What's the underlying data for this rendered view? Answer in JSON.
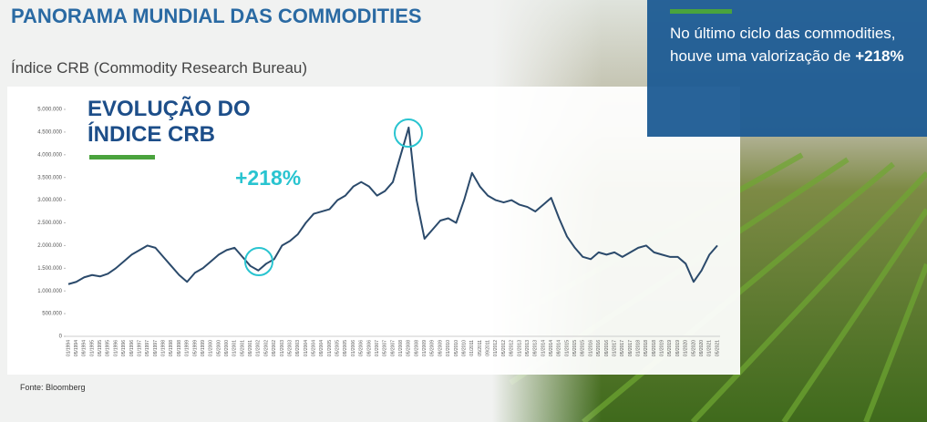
{
  "header": {
    "title": "PANORAMA MUNDIAL DAS COMMODITIES",
    "subtitle": "Índice CRB (Commodity Research Bureau)"
  },
  "callout": {
    "text": "No último ciclo das commodities, houve uma valorização de",
    "highlight": "+218%"
  },
  "source": "Fonte: Bloomberg",
  "chart_data": {
    "type": "line",
    "title": "EVOLUÇÃO DO ÍNDICE CRB",
    "annotation": "+218%",
    "categories": [
      "01/1994",
      "05/1994",
      "09/1994",
      "01/1995",
      "05/1995",
      "09/1995",
      "01/1996",
      "05/1996",
      "09/1996",
      "01/1997",
      "05/1997",
      "09/1997",
      "01/1998",
      "05/1998",
      "09/1998",
      "01/1999",
      "05/1999",
      "09/1999",
      "01/2000",
      "05/2000",
      "09/2000",
      "01/2001",
      "05/2001",
      "09/2001",
      "01/2002",
      "05/2002",
      "09/2002",
      "01/2003",
      "05/2003",
      "09/2003",
      "01/2004",
      "05/2004",
      "09/2004",
      "01/2005",
      "05/2005",
      "09/2005",
      "01/2006",
      "05/2006",
      "09/2006",
      "01/2007",
      "05/2007",
      "09/2007",
      "01/2008",
      "05/2008",
      "09/2008",
      "01/2009",
      "05/2009",
      "09/2009",
      "01/2010",
      "05/2010",
      "09/2010",
      "01/2011",
      "05/2011",
      "09/2011",
      "01/2012",
      "05/2012",
      "09/2012",
      "01/2013",
      "05/2013",
      "09/2013",
      "01/2014",
      "05/2014",
      "09/2014",
      "01/2015",
      "05/2015",
      "09/2015",
      "01/2016",
      "05/2016",
      "09/2016",
      "01/2017",
      "05/2017",
      "09/2017",
      "01/2018",
      "05/2018",
      "09/2018",
      "01/2019",
      "05/2019",
      "09/2019",
      "01/2020",
      "05/2020",
      "09/2020",
      "01/2021",
      "05/2021"
    ],
    "series": [
      {
        "name": "CRB",
        "color": "#2b4a6b",
        "values": [
          1150000,
          1200000,
          1300000,
          1350000,
          1320000,
          1380000,
          1500000,
          1650000,
          1800000,
          1900000,
          2000000,
          1950000,
          1750000,
          1550000,
          1350000,
          1200000,
          1400000,
          1500000,
          1650000,
          1800000,
          1900000,
          1950000,
          1750000,
          1550000,
          1450000,
          1600000,
          1700000,
          2000000,
          2100000,
          2250000,
          2500000,
          2700000,
          2750000,
          2800000,
          3000000,
          3100000,
          3300000,
          3400000,
          3300000,
          3100000,
          3200000,
          3400000,
          4000000,
          4600000,
          3000000,
          2150000,
          2350000,
          2550000,
          2600000,
          2500000,
          3000000,
          3600000,
          3300000,
          3100000,
          3000000,
          2950000,
          3000000,
          2900000,
          2850000,
          2750000,
          2900000,
          3050000,
          2600000,
          2200000,
          1950000,
          1750000,
          1700000,
          1850000,
          1800000,
          1850000,
          1750000,
          1850000,
          1950000,
          2000000,
          1850000,
          1800000,
          1750000,
          1750000,
          1600000,
          1200000,
          1450000,
          1800000,
          2000000
        ]
      }
    ],
    "ylim": [
      0,
      5000000
    ],
    "yticks": [
      0,
      {
        "value": 500000,
        "label": "500.000"
      },
      {
        "value": 1000000,
        "label": "1.000.000"
      },
      {
        "value": 1500000,
        "label": "1.500.000"
      },
      {
        "value": 2000000,
        "label": "2.000.000"
      },
      {
        "value": 2500000,
        "label": "2.500.000"
      },
      {
        "value": 3000000,
        "label": "3.000.000"
      },
      {
        "value": 3500000,
        "label": "3.500.000"
      },
      {
        "value": 4000000,
        "label": "4.000.000"
      },
      {
        "value": 4500000,
        "label": "4.500.000"
      },
      {
        "value": 5000000,
        "label": "5.000.000"
      }
    ]
  }
}
